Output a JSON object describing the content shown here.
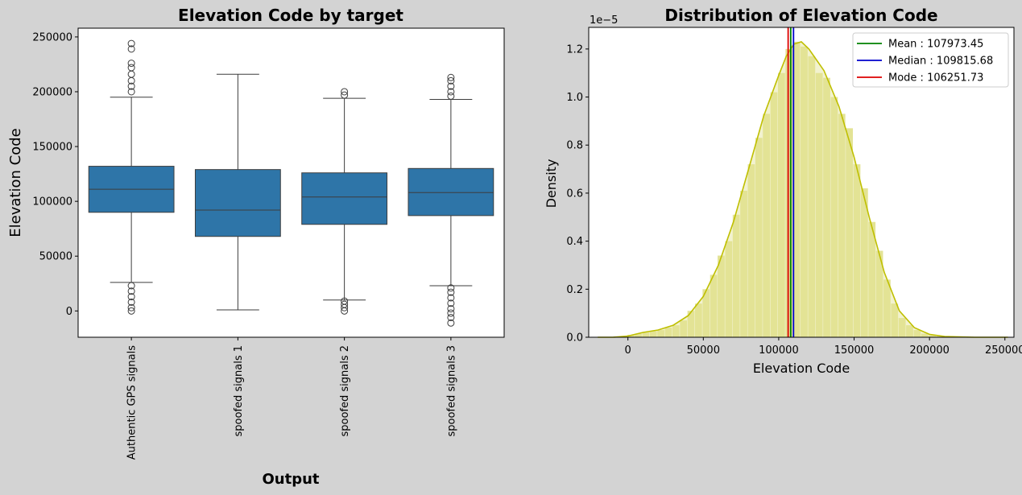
{
  "chart_data": [
    {
      "type": "box",
      "title": "Elevation Code by target",
      "xlabel": "Output",
      "ylabel": "Elevation Code",
      "ylim": [
        -24000,
        258000
      ],
      "yticks": [
        0,
        50000,
        100000,
        150000,
        200000,
        250000
      ],
      "color": "#2e75a8",
      "categories": [
        "Authentic GPS signals",
        "spoofed signals 1",
        "spoofed signals 2",
        "spoofed signals 3"
      ],
      "boxes": [
        {
          "whisker_low": 26000,
          "q1": 90000,
          "median": 111000,
          "q3": 132000,
          "whisker_high": 195000,
          "outliers_high": [
            200000,
            205000,
            210000,
            216000,
            222000,
            226000,
            239000,
            244000
          ],
          "outliers_low": [
            0,
            3000,
            8000,
            13000,
            18000,
            23000
          ]
        },
        {
          "whisker_low": 1000,
          "q1": 68000,
          "median": 92000,
          "q3": 129000,
          "whisker_high": 216000,
          "outliers_high": [],
          "outliers_low": []
        },
        {
          "whisker_low": 10000,
          "q1": 79000,
          "median": 104000,
          "q3": 126000,
          "whisker_high": 194000,
          "outliers_high": [
            197000,
            200000
          ],
          "outliers_low": [
            0,
            3000,
            6000,
            9000
          ]
        },
        {
          "whisker_low": 23000,
          "q1": 87000,
          "median": 108000,
          "q3": 130000,
          "whisker_high": 193000,
          "outliers_high": [
            196000,
            200000,
            205000,
            210000,
            213000
          ],
          "outliers_low": [
            -11000,
            -6000,
            -2000,
            2000,
            7000,
            12000,
            17000,
            21000
          ]
        }
      ]
    },
    {
      "type": "histogram",
      "title": "Distribution of Elevation Code",
      "xlabel": "Elevation Code",
      "ylabel": "Density",
      "y_scale_label": "1e−5",
      "xlim": [
        -26000,
        256000
      ],
      "ylim": [
        0,
        1.29
      ],
      "xticks": [
        0,
        50000,
        100000,
        150000,
        200000,
        250000
      ],
      "yticks": [
        0.0,
        0.2,
        0.4,
        0.6,
        0.8,
        1.0,
        1.2
      ],
      "fill_color": "#e3e395",
      "line_color": "#bfbf00",
      "kde": [
        [
          -20000,
          0.0
        ],
        [
          -10000,
          0.0
        ],
        [
          0,
          0.005
        ],
        [
          10000,
          0.02
        ],
        [
          20000,
          0.03
        ],
        [
          30000,
          0.05
        ],
        [
          40000,
          0.09
        ],
        [
          50000,
          0.17
        ],
        [
          60000,
          0.3
        ],
        [
          70000,
          0.48
        ],
        [
          80000,
          0.7
        ],
        [
          90000,
          0.92
        ],
        [
          100000,
          1.09
        ],
        [
          105000,
          1.17
        ],
        [
          110000,
          1.22
        ],
        [
          115000,
          1.23
        ],
        [
          120000,
          1.2
        ],
        [
          130000,
          1.11
        ],
        [
          140000,
          0.96
        ],
        [
          150000,
          0.75
        ],
        [
          160000,
          0.5
        ],
        [
          170000,
          0.27
        ],
        [
          180000,
          0.11
        ],
        [
          190000,
          0.04
        ],
        [
          200000,
          0.012
        ],
        [
          210000,
          0.003
        ],
        [
          230000,
          0.0
        ],
        [
          252000,
          0.0
        ]
      ],
      "bins": [
        [
          2000,
          0.01
        ],
        [
          7000,
          0.015
        ],
        [
          12000,
          0.02
        ],
        [
          17000,
          0.025
        ],
        [
          22000,
          0.03
        ],
        [
          27000,
          0.04
        ],
        [
          32000,
          0.05
        ],
        [
          37000,
          0.07
        ],
        [
          42000,
          0.11
        ],
        [
          47000,
          0.14
        ],
        [
          52000,
          0.2
        ],
        [
          57000,
          0.26
        ],
        [
          62000,
          0.34
        ],
        [
          67000,
          0.4
        ],
        [
          72000,
          0.51
        ],
        [
          77000,
          0.61
        ],
        [
          82000,
          0.72
        ],
        [
          87000,
          0.83
        ],
        [
          92000,
          0.93
        ],
        [
          97000,
          1.02
        ],
        [
          102000,
          1.1
        ],
        [
          107000,
          1.2
        ],
        [
          112000,
          1.23
        ],
        [
          117000,
          1.21
        ],
        [
          122000,
          1.17
        ],
        [
          127000,
          1.1
        ],
        [
          132000,
          1.08
        ],
        [
          137000,
          1.0
        ],
        [
          142000,
          0.93
        ],
        [
          147000,
          0.87
        ],
        [
          152000,
          0.72
        ],
        [
          157000,
          0.62
        ],
        [
          162000,
          0.48
        ],
        [
          167000,
          0.36
        ],
        [
          172000,
          0.24
        ],
        [
          177000,
          0.14
        ],
        [
          182000,
          0.08
        ],
        [
          187000,
          0.05
        ],
        [
          192000,
          0.03
        ],
        [
          197000,
          0.015
        ],
        [
          202000,
          0.008
        ],
        [
          207000,
          0.004
        ],
        [
          212000,
          0.002
        ],
        [
          217000,
          0.001
        ]
      ],
      "vlines": [
        {
          "label": "Mean :  107973.45",
          "value": 107973.45,
          "color": "#008000"
        },
        {
          "label": "Median :  109815.68",
          "value": 109815.68,
          "color": "#0000cc"
        },
        {
          "label": "Mode :  106251.73",
          "value": 106251.73,
          "color": "#dd0000"
        }
      ],
      "legend_position": "top-right"
    }
  ]
}
